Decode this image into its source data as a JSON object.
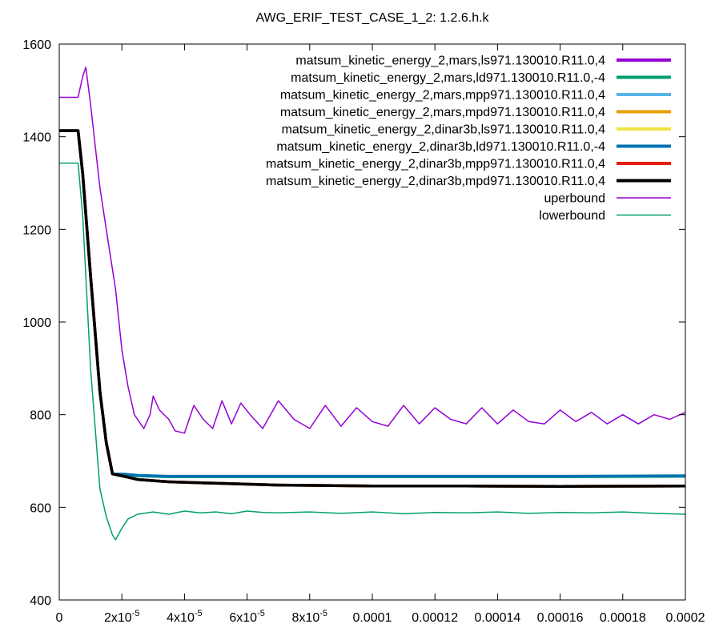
{
  "chart_data": {
    "type": "line",
    "title": "AWG_ERIF_TEST_CASE_1_2: 1.2.6.h.k",
    "xlabel": "",
    "ylabel": "",
    "xlim": [
      0,
      0.0002
    ],
    "ylim": [
      400,
      1600
    ],
    "grid": false,
    "legend_position": "top-right",
    "x_ticks": [
      {
        "value": 0,
        "label": "0"
      },
      {
        "value": 2e-05,
        "label": "2x10-5"
      },
      {
        "value": 4e-05,
        "label": "4x10-5"
      },
      {
        "value": 6e-05,
        "label": "6x10-5"
      },
      {
        "value": 8e-05,
        "label": "8x10-5"
      },
      {
        "value": 0.0001,
        "label": "0.0001"
      },
      {
        "value": 0.00012,
        "label": "0.00012"
      },
      {
        "value": 0.00014,
        "label": "0.00014"
      },
      {
        "value": 0.00016,
        "label": "0.00016"
      },
      {
        "value": 0.00018,
        "label": "0.00018"
      },
      {
        "value": 0.0002,
        "label": "0.0002"
      }
    ],
    "y_ticks": [
      {
        "value": 400,
        "label": "400"
      },
      {
        "value": 600,
        "label": "600"
      },
      {
        "value": 800,
        "label": "800"
      },
      {
        "value": 1000,
        "label": "1000"
      },
      {
        "value": 1200,
        "label": "1200"
      },
      {
        "value": 1400,
        "label": "1400"
      },
      {
        "value": 1600,
        "label": "1600"
      }
    ],
    "series": [
      {
        "name": "matsum_kinetic_energy_2,mars,ls971.130010.R11.0,4",
        "color": "#9400d3",
        "style": "thick",
        "x": [
          0,
          6e-06,
          7.5e-06,
          1e-05,
          1.3e-05,
          1.5e-05,
          1.7e-05,
          2e-05,
          2.5e-05,
          3.5e-05,
          5e-05,
          7e-05,
          0.0001,
          0.00013,
          0.00016,
          0.0002
        ],
        "y": [
          1413,
          1413,
          1320,
          1100,
          850,
          740,
          672,
          668,
          660,
          655,
          652,
          648,
          646,
          646,
          645,
          646
        ]
      },
      {
        "name": "matsum_kinetic_energy_2,mars,ld971.130010.R11.0,-4",
        "color": "#009e73",
        "style": "thick",
        "x": [
          0,
          6e-06,
          7.5e-06,
          1e-05,
          1.3e-05,
          1.5e-05,
          1.7e-05,
          2e-05,
          2.5e-05,
          3.5e-05,
          5e-05,
          7e-05,
          0.0001,
          0.00013,
          0.00016,
          0.0002
        ],
        "y": [
          1413,
          1413,
          1320,
          1100,
          850,
          740,
          672,
          670,
          668,
          666,
          666,
          666,
          666,
          666,
          666,
          667
        ]
      },
      {
        "name": "matsum_kinetic_energy_2,mars,mpp971.130010.R11.0,4",
        "color": "#56b4e9",
        "style": "thick",
        "x": [
          0,
          6e-06,
          7.5e-06,
          1e-05,
          1.3e-05,
          1.5e-05,
          1.7e-05,
          2e-05,
          2.5e-05,
          3.5e-05,
          5e-05,
          7e-05,
          0.0001,
          0.00013,
          0.00016,
          0.0002
        ],
        "y": [
          1413,
          1413,
          1320,
          1100,
          850,
          740,
          672,
          668,
          660,
          655,
          652,
          648,
          646,
          646,
          645,
          646
        ]
      },
      {
        "name": "matsum_kinetic_energy_2,mars,mpd971.130010.R11.0,4",
        "color": "#e69f00",
        "style": "thick",
        "x": [
          0,
          6e-06,
          7.5e-06,
          1e-05,
          1.3e-05,
          1.5e-05,
          1.7e-05,
          2e-05,
          2.5e-05,
          3.5e-05,
          5e-05,
          7e-05,
          0.0001,
          0.00013,
          0.00016,
          0.0002
        ],
        "y": [
          1413,
          1413,
          1320,
          1100,
          850,
          740,
          672,
          668,
          660,
          655,
          652,
          648,
          646,
          646,
          645,
          646
        ]
      },
      {
        "name": "matsum_kinetic_energy_2,dinar3b,ls971.130010.R11.0,4",
        "color": "#f0e442",
        "style": "thick",
        "x": [
          0,
          6e-06,
          7.5e-06,
          1e-05,
          1.3e-05,
          1.5e-05,
          1.7e-05,
          2e-05,
          2.5e-05,
          3.5e-05,
          5e-05,
          7e-05,
          0.0001,
          0.00013,
          0.00016,
          0.0002
        ],
        "y": [
          1413,
          1413,
          1320,
          1100,
          850,
          740,
          672,
          668,
          660,
          655,
          652,
          648,
          646,
          646,
          645,
          646
        ]
      },
      {
        "name": "matsum_kinetic_energy_2,dinar3b,ld971.130010.R11.0,-4",
        "color": "#0072b2",
        "style": "thick",
        "x": [
          0,
          6e-06,
          7.5e-06,
          1e-05,
          1.3e-05,
          1.5e-05,
          1.7e-05,
          2e-05,
          2.5e-05,
          3.5e-05,
          5e-05,
          7e-05,
          0.0001,
          0.00013,
          0.00016,
          0.0002
        ],
        "y": [
          1413,
          1413,
          1320,
          1100,
          850,
          740,
          672,
          672,
          669,
          667,
          667,
          667,
          667,
          667,
          667,
          668
        ]
      },
      {
        "name": "matsum_kinetic_energy_2,dinar3b,mpp971.130010.R11.0,4",
        "color": "#e51e10",
        "style": "thick",
        "x": [
          0,
          6e-06,
          7.5e-06,
          1e-05,
          1.3e-05,
          1.5e-05,
          1.7e-05,
          2e-05,
          2.5e-05,
          3.5e-05,
          5e-05,
          7e-05,
          0.0001,
          0.00013,
          0.00016,
          0.0002
        ],
        "y": [
          1413,
          1413,
          1320,
          1100,
          850,
          740,
          672,
          668,
          660,
          655,
          652,
          648,
          646,
          646,
          645,
          646
        ]
      },
      {
        "name": "matsum_kinetic_energy_2,dinar3b,mpd971.130010.R11.0,4",
        "color": "#000000",
        "style": "thick",
        "x": [
          0,
          6e-06,
          7.5e-06,
          1e-05,
          1.3e-05,
          1.5e-05,
          1.7e-05,
          2e-05,
          2.5e-05,
          3.5e-05,
          5e-05,
          7e-05,
          0.0001,
          0.00013,
          0.00016,
          0.0002
        ],
        "y": [
          1413,
          1413,
          1320,
          1100,
          850,
          740,
          672,
          668,
          660,
          655,
          652,
          648,
          646,
          646,
          645,
          646
        ]
      },
      {
        "name": "uperbound",
        "color": "#9400d3",
        "style": "thin",
        "x": [
          0,
          6e-06,
          7.5e-06,
          8.5e-06,
          1e-05,
          1.3e-05,
          1.5e-05,
          1.8e-05,
          2e-05,
          2.2e-05,
          2.4e-05,
          2.7e-05,
          2.9e-05,
          3e-05,
          3.2e-05,
          3.5e-05,
          3.7e-05,
          4e-05,
          4.3e-05,
          4.6e-05,
          4.9e-05,
          5.2e-05,
          5.5e-05,
          5.8e-05,
          6.1e-05,
          6.5e-05,
          7e-05,
          7.5e-05,
          8e-05,
          8.5e-05,
          9e-05,
          9.5e-05,
          0.0001,
          0.000105,
          0.00011,
          0.000115,
          0.00012,
          0.000125,
          0.00013,
          0.000135,
          0.00014,
          0.000145,
          0.00015,
          0.000155,
          0.00016,
          0.000165,
          0.00017,
          0.000175,
          0.00018,
          0.000185,
          0.00019,
          0.000195,
          0.0002
        ],
        "y": [
          1485,
          1485,
          1530,
          1550,
          1470,
          1290,
          1200,
          1070,
          940,
          860,
          800,
          770,
          800,
          840,
          810,
          790,
          765,
          760,
          820,
          790,
          770,
          830,
          780,
          825,
          800,
          770,
          830,
          790,
          770,
          820,
          775,
          815,
          785,
          775,
          820,
          780,
          815,
          790,
          780,
          815,
          780,
          810,
          785,
          780,
          810,
          785,
          805,
          780,
          800,
          780,
          800,
          790,
          805
        ]
      },
      {
        "name": "lowerbound",
        "color": "#009e73",
        "style": "thin",
        "x": [
          0,
          6e-06,
          7.5e-06,
          1e-05,
          1.3e-05,
          1.5e-05,
          1.7e-05,
          1.8e-05,
          2e-05,
          2.2e-05,
          2.5e-05,
          3e-05,
          3.5e-05,
          4e-05,
          4.5e-05,
          5e-05,
          5.5e-05,
          6e-05,
          6.5e-05,
          7e-05,
          8e-05,
          9e-05,
          0.0001,
          0.00011,
          0.00012,
          0.00013,
          0.00014,
          0.00015,
          0.00016,
          0.00017,
          0.00018,
          0.00019,
          0.0002
        ],
        "y": [
          1343,
          1343,
          1230,
          900,
          640,
          580,
          540,
          530,
          555,
          575,
          585,
          590,
          585,
          592,
          588,
          590,
          586,
          592,
          589,
          588,
          590,
          587,
          590,
          586,
          589,
          588,
          590,
          587,
          589,
          588,
          590,
          587,
          585
        ]
      }
    ]
  }
}
